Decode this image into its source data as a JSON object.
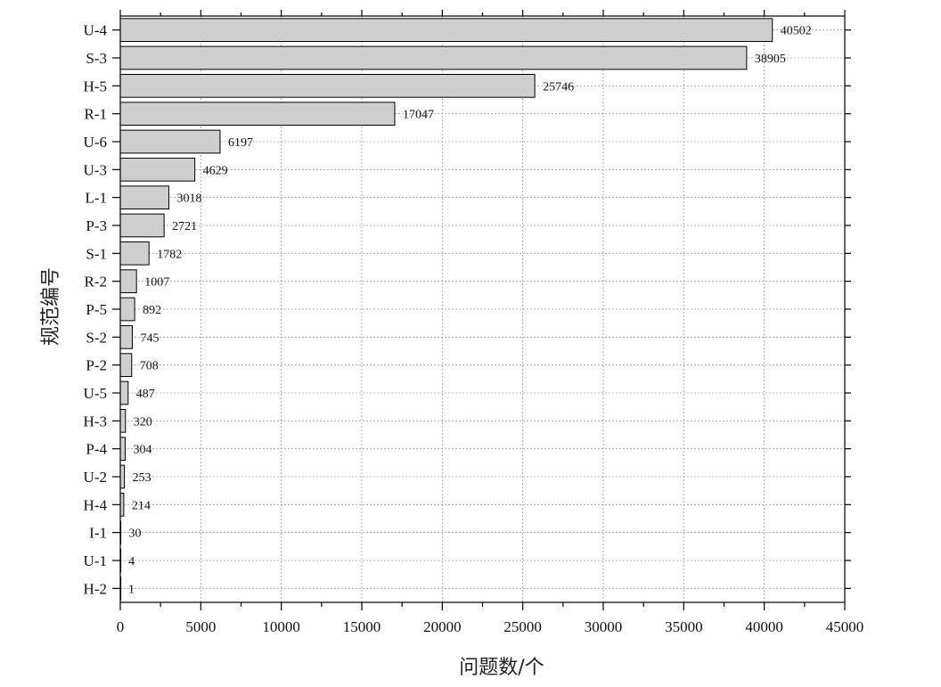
{
  "chart_data": {
    "type": "bar",
    "orientation": "horizontal",
    "title": "",
    "xlabel": "问题数/个",
    "ylabel": "规范编号",
    "xlim": [
      0,
      45000
    ],
    "xticks": [
      "0",
      "5000",
      "10000",
      "15000",
      "20000",
      "25000",
      "30000",
      "35000",
      "40000",
      "45000"
    ],
    "grid": true,
    "colors": {
      "bar_fill": "#cfcfcf",
      "bar_edge": "#000000",
      "grid": "#9a9a9a"
    },
    "categories": [
      "U-4",
      "S-3",
      "H-5",
      "R-1",
      "U-6",
      "U-3",
      "L-1",
      "P-3",
      "S-1",
      "R-2",
      "P-5",
      "S-2",
      "P-2",
      "U-5",
      "H-3",
      "P-4",
      "U-2",
      "H-4",
      "I-1",
      "U-1",
      "H-2"
    ],
    "values": [
      40502,
      38905,
      25746,
      17047,
      6197,
      4629,
      3018,
      2721,
      1782,
      1007,
      892,
      745,
      708,
      487,
      320,
      304,
      253,
      214,
      30,
      4,
      1
    ],
    "value_labels": [
      "40502",
      "38905",
      "25746",
      "17047",
      "6197",
      "4629",
      "3018",
      "2721",
      "1782",
      "1007",
      "892",
      "745",
      "708",
      "487",
      "320",
      "304",
      "253",
      "214",
      "30",
      "4",
      "1"
    ]
  }
}
